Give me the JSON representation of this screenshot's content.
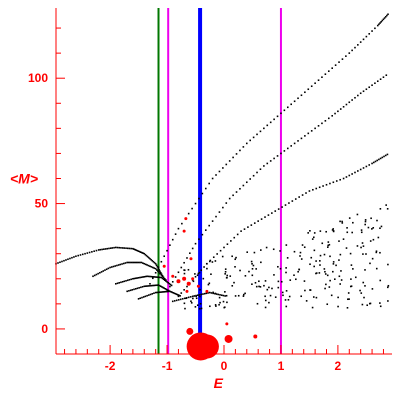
{
  "chart_data": {
    "type": "scatter",
    "xlabel": "E",
    "ylabel": "<M>",
    "xlim": [
      -2.95,
      2.95
    ],
    "ylim": [
      -10,
      128
    ],
    "x_ticks": [
      -2,
      -1,
      0,
      1,
      2
    ],
    "x_tick_labels": [
      "-2",
      "-1",
      "0",
      "1",
      "2"
    ],
    "y_ticks": [
      0,
      50,
      100
    ],
    "y_tick_labels": [
      "0",
      "50",
      "100"
    ],
    "grid": false,
    "vertical_lines": [
      {
        "x": -1.15,
        "color": "#007700"
      },
      {
        "x": -0.98,
        "color": "#ee00ee"
      },
      {
        "x": -0.42,
        "color": "#0000ff"
      },
      {
        "x": 1.0,
        "color": "#ee00ee"
      }
    ],
    "series": [
      {
        "color": "#000000",
        "curves": [
          {
            "x": [
              -1.3,
              -0.8,
              -0.2,
              0.4,
              1.0,
              1.6,
              2.2,
              2.7,
              2.9
            ],
            "y": [
              18,
              40,
              60,
              74,
              86,
              98,
              110,
              121,
              126
            ]
          },
          {
            "x": [
              -1.0,
              -0.5,
              0.1,
              0.7,
              1.3,
              1.9,
              2.4,
              2.9
            ],
            "y": [
              15,
              34,
              52,
              65,
              75,
              85,
              94,
              102
            ]
          },
          {
            "x": [
              -0.8,
              -0.3,
              0.3,
              0.9,
              1.5,
              2.1,
              2.6,
              2.9
            ],
            "y": [
              13,
              26,
              39,
              47,
              55,
              60,
              66,
              70
            ]
          },
          {
            "x": [
              -2.95,
              -2.6,
              -2.2,
              -1.9,
              -1.6,
              -1.4,
              -1.2,
              -1.05
            ],
            "y": [
              26,
              29,
              31.5,
              32.5,
              32,
              30,
              26,
              20
            ]
          },
          {
            "x": [
              -2.3,
              -2.0,
              -1.7,
              -1.45,
              -1.2,
              -1.0
            ],
            "y": [
              21,
              24.5,
              26.5,
              26.5,
              24,
              19
            ]
          },
          {
            "x": [
              -1.9,
              -1.6,
              -1.35,
              -1.1,
              -0.9
            ],
            "y": [
              18,
              20,
              21,
              20.5,
              17
            ]
          },
          {
            "x": [
              -1.7,
              -1.4,
              -1.15,
              -0.95
            ],
            "y": [
              15,
              17,
              17.5,
              15
            ]
          },
          {
            "x": [
              -1.5,
              -1.2,
              -0.95,
              -0.75
            ],
            "y": [
              12,
              14.5,
              15,
              13
            ]
          },
          {
            "x": [
              -0.9,
              -0.55,
              -0.25,
              0.05
            ],
            "y": [
              11,
              13,
              14.5,
              13
            ]
          }
        ],
        "scatter": {
          "seed": 7,
          "count": 260,
          "x_range": [
            -0.7,
            2.9
          ],
          "y_range": [
            8,
            50
          ]
        }
      },
      {
        "color": "#ff0000",
        "points": [
          {
            "x": -0.41,
            "y": -7,
            "s": 14
          },
          {
            "x": -0.3,
            "y": -7,
            "s": 12
          },
          {
            "x": -0.5,
            "y": -6,
            "s": 8
          },
          {
            "x": 0.08,
            "y": -4,
            "s": 4
          },
          {
            "x": -0.6,
            "y": -1,
            "s": 3.5
          },
          {
            "x": 0.55,
            "y": -3,
            "s": 2
          },
          {
            "x": -0.8,
            "y": 19,
            "s": 2
          },
          {
            "x": -0.7,
            "y": 20,
            "s": 2
          },
          {
            "x": -0.62,
            "y": 18,
            "s": 2
          },
          {
            "x": -0.55,
            "y": 20,
            "s": 1.5
          },
          {
            "x": -0.9,
            "y": 21,
            "s": 1.5
          },
          {
            "x": -0.65,
            "y": 15,
            "s": 1.5
          },
          {
            "x": -0.45,
            "y": 17,
            "s": 1.5
          },
          {
            "x": -0.58,
            "y": 28,
            "s": 1.5
          },
          {
            "x": -0.7,
            "y": 39,
            "s": 1.5
          },
          {
            "x": -0.67,
            "y": 44,
            "s": 1.5
          },
          {
            "x": 0.05,
            "y": 2,
            "s": 1.5
          },
          {
            "x": -0.3,
            "y": 15,
            "s": 1.5
          },
          {
            "x": -1.05,
            "y": 25,
            "s": 1.5
          }
        ]
      }
    ]
  }
}
